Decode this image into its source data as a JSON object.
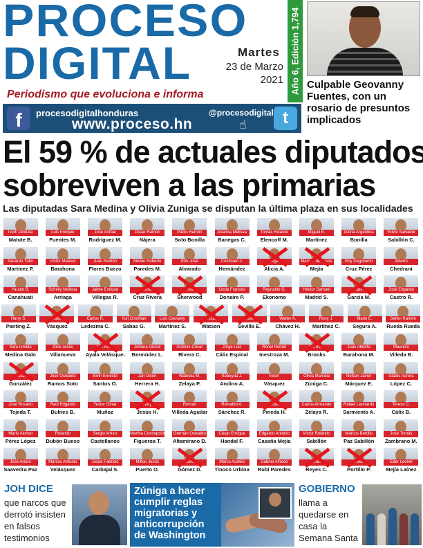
{
  "masthead": {
    "word1": "PROCESO",
    "word2": "DIGITAL",
    "day": "Martes",
    "date": "23 de Marzo",
    "year": "2021",
    "tagline": "Periodismo que evoluciona e informa",
    "edition": "Año 6, Edición 1,794"
  },
  "side_story": {
    "headline": "Culpable Geovanny Fuentes, con un rosario de presuntos implicados"
  },
  "social": {
    "facebook_icon": "f",
    "facebook": "procesodigitalhonduras",
    "website": "www.proceso.hn",
    "twitter": "@procesodigital",
    "twitter_icon": "t",
    "cursor_icon": "☝"
  },
  "main_story": {
    "headline_line1": "El 59 % de actuales diputados",
    "headline_line2": "sobreviven a las primarias",
    "subheadline": "Las diputadas Sara Medina y Olivia Zuniga se disputan la última plaza en sus localidades"
  },
  "deputies": [
    [
      {
        "first": "Iveth Obdulia",
        "last": "Matute B.",
        "x": false
      },
      {
        "first": "Luis Enrique",
        "last": "Fuentes M.",
        "x": false
      },
      {
        "first": "José Aníbal",
        "last": "Rodríguez M.",
        "x": false
      },
      {
        "first": "Óscar Ramón",
        "last": "Nájera",
        "x": false
      },
      {
        "first": "Pablo Ramón",
        "last": "Soto Bonilla",
        "x": false
      },
      {
        "first": "Arianna Melissa",
        "last": "Banegas C.",
        "x": false
      },
      {
        "first": "Tomás Ricardo",
        "last": "Elencoff M.",
        "x": false
      },
      {
        "first": "Miguel E.",
        "last": "Martínez",
        "x": false
      },
      {
        "first": "Gloria Argentina",
        "last": "Bonilla",
        "x": false
      },
      {
        "first": "Yolvie Salvador",
        "last": "Sabillón C.",
        "x": false
      }
    ],
    [
      {
        "first": "Gerardo Tulio",
        "last": "Martínez P.",
        "x": false
      },
      {
        "first": "Víctor Manuel",
        "last": "Barahona",
        "x": false
      },
      {
        "first": "Juan Ramón",
        "last": "Flores Buezo",
        "x": false
      },
      {
        "first": "Melvin Roberto",
        "last": "Paredes M.",
        "x": false
      },
      {
        "first": "Erik José",
        "last": "Alvarado",
        "x": false
      },
      {
        "first": "Cristhiam J.",
        "last": "Hernández",
        "x": false
      },
      {
        "first": "Olga",
        "last": "Alicia A.",
        "x": true
      },
      {
        "first": "Manuel de Jesús",
        "last": "Mejía",
        "x": true
      },
      {
        "first": "Roy Dagoberto",
        "last": "Cruz Pérez",
        "x": false
      },
      {
        "first": "Alberto",
        "last": "Chedrani",
        "x": false
      }
    ],
    [
      {
        "first": "Yaudet B.",
        "last": "Canahuati",
        "x": false
      },
      {
        "first": "Scheily Melissa",
        "last": "Arriaga",
        "x": false
      },
      {
        "first": "Jaime Enrique",
        "last": "Villegas R.",
        "x": false
      },
      {
        "first": "José",
        "last": "Cruz Rivera",
        "x": true
      },
      {
        "first": "Ana",
        "last": "Sherwood",
        "x": true
      },
      {
        "first": "Linda Francés",
        "last": "Donaire P.",
        "x": false
      },
      {
        "first": "Reynaldo G.",
        "last": "Ekonomo",
        "x": false
      },
      {
        "first": "Héctor Samuel",
        "last": "Madrid S.",
        "x": false
      },
      {
        "first": "Rubén",
        "last": "García M.",
        "x": true
      },
      {
        "first": "José Edgardo",
        "last": "Castro R.",
        "x": false
      }
    ],
    [
      {
        "first": "Harry S.",
        "last": "Panting Z.",
        "x": false
      },
      {
        "first": "Walter",
        "last": "Vásquez",
        "x": true
      },
      {
        "first": "Carlos R.",
        "last": "Ledezma C.",
        "x": false
      },
      {
        "first": "Yuri Cristhian",
        "last": "Sabas G.",
        "x": false
      },
      {
        "first": "Luis Geovany",
        "last": "Martínez S.",
        "x": false
      },
      {
        "first": "Oscar",
        "last": "Watson",
        "x": true
      },
      {
        "first": "José",
        "last": "Sevilla E.",
        "x": true
      },
      {
        "first": "Walter A.",
        "last": "Chávez H.",
        "x": false
      },
      {
        "first": "Rony J.",
        "last": "Martínez C.",
        "x": false
      },
      {
        "first": "Mario E.",
        "last": "Segura A.",
        "x": false
      },
      {
        "first": "Selvin Ramón",
        "last": "Rueda Rueda",
        "x": false
      }
    ],
    [
      {
        "first": "Sara Ismela",
        "last": "Medina Galo",
        "x": false
      },
      {
        "first": "José Jesús",
        "last": "Villanueva",
        "x": false
      },
      {
        "first": "Wilfredo",
        "last": "Ayala Velásquez",
        "x": true
      },
      {
        "first": "Johana Guicel",
        "last": "Bermúdez L.",
        "x": false
      },
      {
        "first": "Antonio César",
        "last": "Rivera C.",
        "x": false
      },
      {
        "first": "Jorge Luis",
        "last": "Cálix Espinal",
        "x": false
      },
      {
        "first": "Ronel Renán",
        "last": "Inestroza M.",
        "x": false
      },
      {
        "first": "Norman",
        "last": "Brooks",
        "x": true
      },
      {
        "first": "Juan Alberto",
        "last": "Barahona M.",
        "x": false
      },
      {
        "first": "Mauricio",
        "last": "Villeda B.",
        "x": false
      }
    ],
    [
      {
        "first": "Óscar",
        "last": "González",
        "x": true
      },
      {
        "first": "José Oswaldo",
        "last": "Ramos Soto",
        "x": false
      },
      {
        "first": "Elvin Ernesto",
        "last": "Santos O.",
        "x": false
      },
      {
        "first": "Jari Dixon",
        "last": "Herrera H.",
        "x": false
      },
      {
        "first": "Waleska M.",
        "last": "Zelaya P.",
        "x": false
      },
      {
        "first": "Sobeyda J.",
        "last": "Andino A.",
        "x": false
      },
      {
        "first": "Eden",
        "last": "Vásquez",
        "x": false
      },
      {
        "first": "Olivia Marcela",
        "last": "Zúniga C.",
        "x": false
      },
      {
        "first": "Nelson Javier",
        "last": "Márquez E.",
        "x": false
      },
      {
        "first": "Gladis Aurora",
        "last": "López C.",
        "x": false
      }
    ],
    [
      {
        "first": "José Rosario",
        "last": "Tejeda T.",
        "x": false
      },
      {
        "first": "Raúl Edgardo",
        "last": "Bulnes B.",
        "x": false
      },
      {
        "first": "Yester Omar",
        "last": "Muñoz",
        "x": false
      },
      {
        "first": "Nery",
        "last": "Jesús H.",
        "x": true
      },
      {
        "first": "Román",
        "last": "Villeda Aguilar",
        "x": false
      },
      {
        "first": "Reinaldo A.",
        "last": "Sánchez R.",
        "x": false
      },
      {
        "first": "José",
        "last": "Pineda H.",
        "x": true
      },
      {
        "first": "Carlos Armando",
        "last": "Zelaya R.",
        "x": false
      },
      {
        "first": "Rafael Leonardo",
        "last": "Sarmiento A.",
        "x": false
      },
      {
        "first": "Tereso C.",
        "last": "Cálix B.",
        "x": false
      }
    ],
    [
      {
        "first": "Mario Alonso",
        "last": "Pérez López",
        "x": false
      },
      {
        "first": "Rolando",
        "last": "Dubón Bueso",
        "x": false
      },
      {
        "first": "Sergio Arturo",
        "last": "Castellanos",
        "x": false
      },
      {
        "first": "Martha Concepción",
        "last": "Figueroa T.",
        "x": false
      },
      {
        "first": "Germán Oswaldo",
        "last": "Altamirano D.",
        "x": false
      },
      {
        "first": "César Enrique",
        "last": "Handal F.",
        "x": false
      },
      {
        "first": "Edgardo Antonio",
        "last": "Casaña Mejía",
        "x": false
      },
      {
        "first": "Víctor Rolando",
        "last": "Sabillón",
        "x": false
      },
      {
        "first": "Marcos Bertilio",
        "last": "Paz Sabillón",
        "x": false
      },
      {
        "first": "José Tomás",
        "last": "Zambrano M.",
        "x": false
      }
    ],
    [
      {
        "first": "José Arturo",
        "last": "Saavedra Paz",
        "x": false
      },
      {
        "first": "Marcos Antonio",
        "last": "Velásquez",
        "x": false
      },
      {
        "first": "Josué Fabricio",
        "last": "Carbajal S.",
        "x": false
      },
      {
        "first": "Milton Jesús",
        "last": "Puerto O.",
        "x": false
      },
      {
        "first": "Marco",
        "last": "Gómez D.",
        "x": true
      },
      {
        "first": "Marco Aurelio",
        "last": "Tinoco Urbina",
        "x": false
      },
      {
        "first": "Gabriel Alfredo",
        "last": "Rubí Paredes",
        "x": false
      },
      {
        "first": "Juan",
        "last": "Reyes C.",
        "x": true
      },
      {
        "first": "José",
        "last": "Portillo P.",
        "x": true
      },
      {
        "first": "Eder Leonel",
        "last": "Mejía Laínez",
        "x": false
      }
    ]
  ],
  "bottom": {
    "joh_title": "JOH DICE",
    "joh_body": "que narcos que derrotó insisten en falsos testimonios",
    "zuniga": "Zúniga a hacer cumplir reglas migratorias y anticorrupción de Washington",
    "gob_title": "GOBIERNO",
    "gob_body": "llama a quedarse en casa la Semana Santa"
  },
  "colors": {
    "brand_blue": "#1a6aa8",
    "tagline_red": "#a31d25",
    "edition_green": "#2e9a3c",
    "caption_red": "#d8232a",
    "cross_red": "#e3161d"
  }
}
